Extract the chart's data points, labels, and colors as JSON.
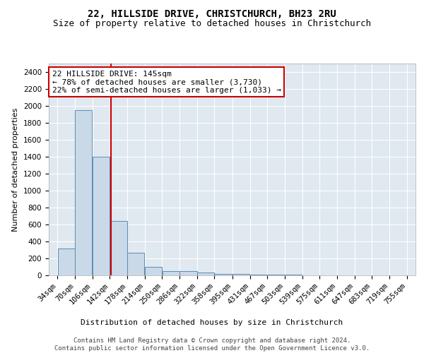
{
  "title": "22, HILLSIDE DRIVE, CHRISTCHURCH, BH23 2RU",
  "subtitle": "Size of property relative to detached houses in Christchurch",
  "xlabel": "Distribution of detached houses by size in Christchurch",
  "ylabel": "Number of detached properties",
  "bins": [
    34,
    70,
    106,
    142,
    178,
    214,
    250,
    286,
    322,
    358,
    395,
    431,
    467,
    503,
    539,
    575,
    611,
    647,
    683,
    719,
    755
  ],
  "counts": [
    320,
    1950,
    1400,
    640,
    270,
    100,
    50,
    50,
    30,
    20,
    20,
    10,
    5,
    5,
    3,
    2,
    2,
    1,
    1,
    1
  ],
  "bar_color": "#c9d9e8",
  "bar_edge_color": "#5a8db5",
  "vline_x": 145,
  "vline_color": "#cc0000",
  "annotation_text": "22 HILLSIDE DRIVE: 145sqm\n← 78% of detached houses are smaller (3,730)\n22% of semi-detached houses are larger (1,033) →",
  "annotation_box_color": "#ffffff",
  "annotation_border_color": "#cc0000",
  "ylim": [
    0,
    2500
  ],
  "yticks": [
    0,
    200,
    400,
    600,
    800,
    1000,
    1200,
    1400,
    1600,
    1800,
    2000,
    2200,
    2400
  ],
  "plot_bg_color": "#e0e8f0",
  "grid_color": "#ffffff",
  "footer_line1": "Contains HM Land Registry data © Crown copyright and database right 2024.",
  "footer_line2": "Contains public sector information licensed under the Open Government Licence v3.0.",
  "title_fontsize": 10,
  "subtitle_fontsize": 9,
  "axis_label_fontsize": 8,
  "tick_fontsize": 7.5,
  "annotation_fontsize": 8,
  "footer_fontsize": 6.5
}
